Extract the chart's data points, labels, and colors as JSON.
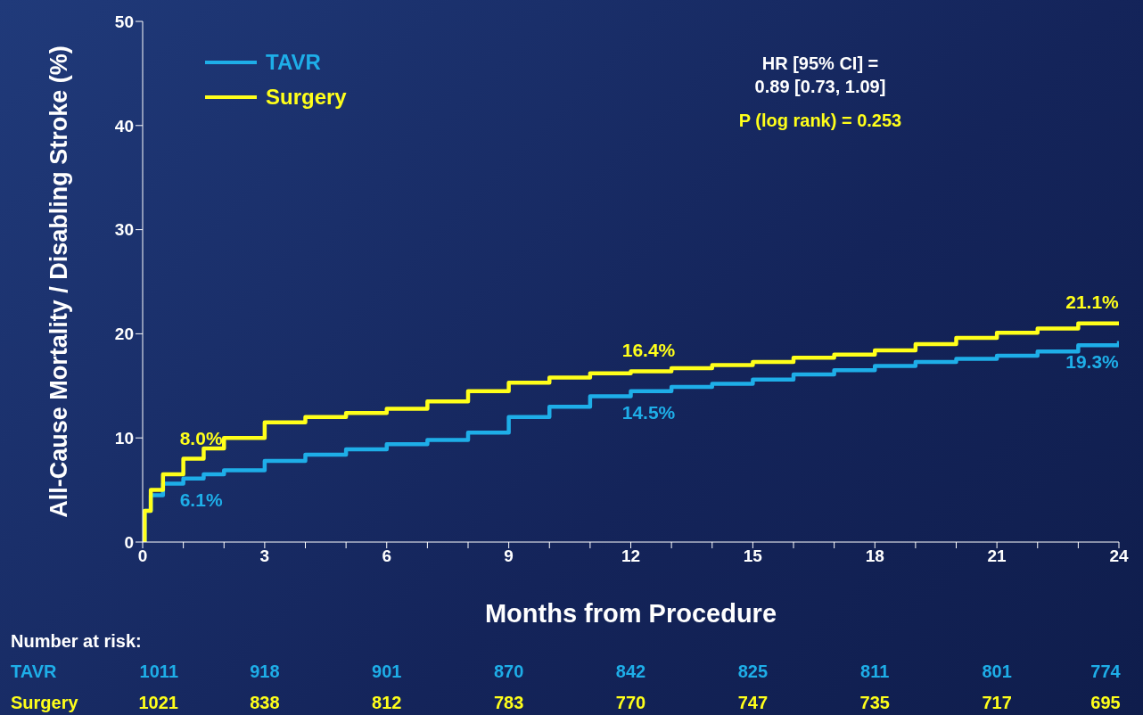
{
  "chart_data": {
    "type": "step",
    "xlabel": "Months from Procedure",
    "ylabel": "All-Cause Mortality / Disabling Stroke (%)",
    "xlim": [
      0,
      24
    ],
    "ylim": [
      0,
      50
    ],
    "xticks": [
      0,
      {
        "value": 1,
        "label": null
      },
      {
        "value": 2,
        "label": null
      },
      3,
      {
        "value": 4,
        "label": null
      },
      {
        "value": 5,
        "label": null
      },
      6,
      {
        "value": 7,
        "label": null
      },
      {
        "value": 8,
        "label": null
      },
      9,
      {
        "value": 10,
        "label": null
      },
      {
        "value": 11,
        "label": null
      },
      12,
      {
        "value": 13,
        "label": null
      },
      {
        "value": 14,
        "label": null
      },
      15,
      {
        "value": 16,
        "label": null
      },
      {
        "value": 17,
        "label": null
      },
      18,
      {
        "value": 19,
        "label": null
      },
      {
        "value": 20,
        "label": null
      },
      21,
      {
        "value": 22,
        "label": null
      },
      {
        "value": 23,
        "label": null
      },
      24
    ],
    "yticks": [
      0,
      10,
      20,
      30,
      40,
      50
    ],
    "grid": false,
    "legend": "top left",
    "marker": "none",
    "series": [
      {
        "name": "TAVR",
        "color": "#1eaee8",
        "x": [
          0,
          0.05,
          0.2,
          0.5,
          1,
          1.5,
          2,
          3,
          4,
          5,
          6,
          7,
          8,
          9,
          10,
          11,
          12,
          13,
          14,
          15,
          16,
          17,
          18,
          19,
          20,
          21,
          22,
          23,
          24
        ],
        "values": [
          0,
          3,
          4.5,
          5.6,
          6.1,
          6.5,
          6.9,
          7.8,
          8.4,
          8.9,
          9.4,
          9.8,
          10.5,
          12,
          13,
          14,
          14.5,
          14.9,
          15.2,
          15.6,
          16.1,
          16.5,
          16.9,
          17.3,
          17.6,
          17.9,
          18.3,
          18.9,
          19.3
        ]
      },
      {
        "name": "Surgery",
        "color": "#ffff1a",
        "x": [
          0,
          0.05,
          0.2,
          0.5,
          1,
          1.5,
          2,
          3,
          4,
          5,
          6,
          7,
          8,
          9,
          10,
          11,
          12,
          13,
          14,
          15,
          16,
          17,
          18,
          19,
          20,
          21,
          22,
          23,
          24
        ],
        "values": [
          0,
          3,
          5,
          6.5,
          8,
          9,
          10,
          11.5,
          12,
          12.4,
          12.8,
          13.5,
          14.5,
          15.3,
          15.8,
          16.2,
          16.4,
          16.7,
          17,
          17.3,
          17.7,
          18,
          18.4,
          19,
          19.6,
          20.1,
          20.5,
          21,
          21.1
        ]
      }
    ],
    "annotations": [
      {
        "text": "6.1%",
        "x": 1,
        "y": 6.1
      },
      {
        "text": "8.0%",
        "x": 1,
        "y": 8.0
      },
      {
        "text": "14.5%",
        "x": 12,
        "y": 14.5
      },
      {
        "text": "16.4%",
        "x": 12,
        "y": 16.4
      },
      {
        "text": "19.3%",
        "x": 24,
        "y": 19.3
      },
      {
        "text": "21.1%",
        "x": 24,
        "y": 21.1
      },
      "HR [95% CI] =",
      "0.89 [0.73, 1.09]",
      "P (log rank) = 0.253",
      "Number at risk:",
      "TAVR",
      "1011",
      "918",
      "901",
      "870",
      "842",
      "825",
      "811",
      "801",
      "774",
      "Surgery",
      "1021",
      "838",
      "812",
      "783",
      "770",
      "747",
      "735",
      "717",
      "695"
    ]
  }
}
